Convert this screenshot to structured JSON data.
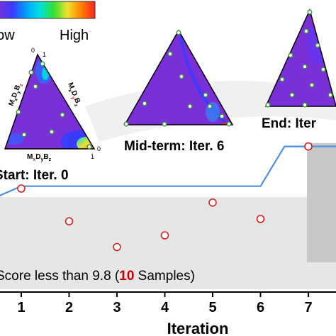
{
  "colorbar": {
    "low_label": "Low",
    "high_label": "High",
    "colors": [
      "#7a2fd8",
      "#3b3bff",
      "#00a0ff",
      "#00e0e0",
      "#33e033",
      "#f0e030",
      "#ff8000",
      "#ff2020"
    ]
  },
  "ternaries": [
    {
      "label": "Start: Iter. 0",
      "corner_labels": [
        "0",
        "1",
        "0",
        "1"
      ],
      "side_labels": {
        "left": {
          "pre": "M",
          "x": "x",
          "mid": "D",
          "y": "y",
          "post": "B",
          "z": "z"
        },
        "right": {
          "pre": "M",
          "x": "x",
          "mid": "D",
          "y": "y",
          "post": "B",
          "z": "z"
        },
        "bottom": {
          "pre": "M",
          "x": "x",
          "mid": "D",
          "y": "y",
          "post": "B",
          "z": "z"
        }
      }
    },
    {
      "label": "Mid-term: Iter. 6"
    },
    {
      "label": "End: Iter"
    }
  ],
  "chart_data": {
    "type": "scatter",
    "xlabel": "Iteration",
    "x_ticks": [
      1,
      2,
      3,
      4,
      5,
      6,
      7
    ],
    "points": [
      {
        "x": 1,
        "y": 9.8
      },
      {
        "x": 2,
        "y": 9.66
      },
      {
        "x": 3,
        "y": 9.55
      },
      {
        "x": 4,
        "y": 9.6
      },
      {
        "x": 5,
        "y": 9.74
      },
      {
        "x": 6,
        "y": 9.67
      },
      {
        "x": 7,
        "y": 9.98
      }
    ],
    "best_line": {
      "x": [
        0.55,
        1,
        2,
        3,
        4,
        5,
        6,
        6.5,
        6.95,
        7.6
      ],
      "y": [
        9.77,
        9.81,
        9.81,
        9.81,
        9.81,
        9.81,
        9.81,
        9.98,
        9.98,
        9.98
      ]
    },
    "band": {
      "note_prefix": "Score less than 9.8 (",
      "note_count": "10",
      "note_suffix": " Samples)",
      "count_color": "#c00000"
    },
    "colors": {
      "line": "#4a90e2",
      "marker": "#d42020",
      "band": "#e6e6e6",
      "dark_band": "#c8c8c8"
    }
  }
}
